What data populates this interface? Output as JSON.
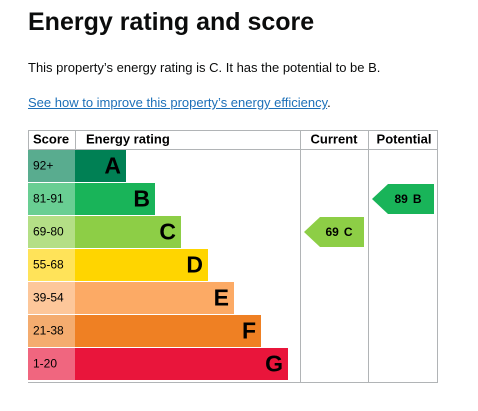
{
  "title": "Energy rating and score",
  "summary": "This property’s energy rating is C. It has the potential to be B.",
  "link": "See how to improve this property’s energy efficiency",
  "link_suffix": ".",
  "table": {
    "headers": [
      "Score",
      "Energy rating",
      "Current",
      "Potential"
    ],
    "rows": [
      {
        "score": "92+",
        "rating": "A",
        "color": "#008054"
      },
      {
        "score": "81-91",
        "rating": "B",
        "color": "#19b459"
      },
      {
        "score": "69-80",
        "rating": "C",
        "color": "#8dce46"
      },
      {
        "score": "55-68",
        "rating": "D",
        "color": "#ffd500"
      },
      {
        "score": "39-54",
        "rating": "E",
        "color": "#fcaa65"
      },
      {
        "score": "21-38",
        "rating": "F",
        "color": "#ef8023"
      },
      {
        "score": "1-20",
        "rating": "G",
        "color": "#e9153b"
      }
    ],
    "current": {
      "score": 69,
      "rating": "C"
    },
    "potential": {
      "score": 89,
      "rating": "B"
    }
  }
}
